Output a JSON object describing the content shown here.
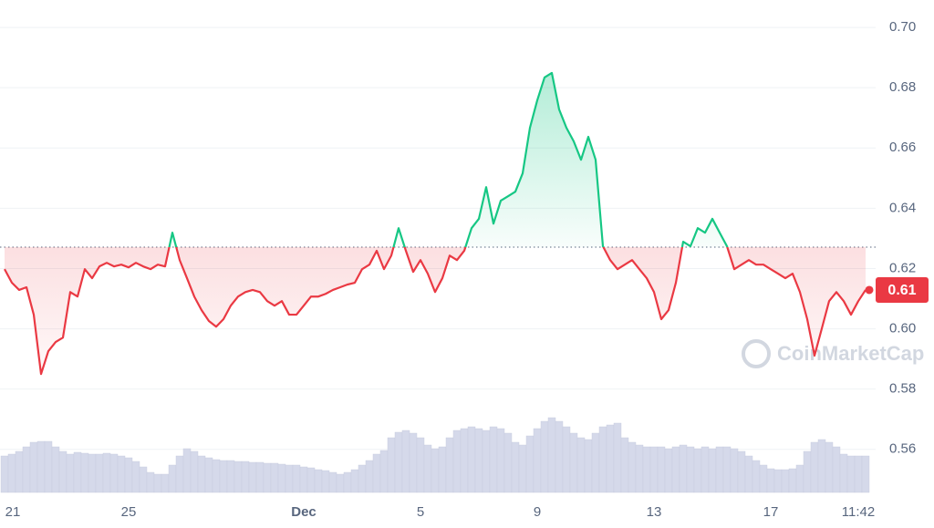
{
  "chart_data": {
    "type": "line",
    "watermark": "CoinMarketCap",
    "categories": [
      null,
      "21",
      null,
      null,
      null,
      null,
      null,
      null,
      null,
      null,
      null,
      null,
      null,
      null,
      null,
      null,
      null,
      "25",
      null,
      null,
      null,
      null,
      null,
      null,
      null,
      null,
      null,
      null,
      null,
      null,
      null,
      null,
      null,
      null,
      null,
      null,
      null,
      null,
      null,
      null,
      null,
      "Dec",
      null,
      null,
      null,
      null,
      null,
      null,
      null,
      null,
      null,
      null,
      null,
      null,
      null,
      null,
      null,
      "5",
      null,
      null,
      null,
      null,
      null,
      null,
      null,
      null,
      null,
      null,
      null,
      null,
      null,
      null,
      null,
      "9",
      null,
      null,
      null,
      null,
      null,
      null,
      null,
      null,
      null,
      null,
      null,
      null,
      null,
      null,
      null,
      "13",
      null,
      null,
      null,
      null,
      null,
      null,
      null,
      null,
      null,
      null,
      null,
      null,
      null,
      null,
      null,
      "17",
      null,
      null,
      null,
      null,
      null,
      null,
      null,
      null,
      null,
      null,
      null,
      "11:42",
      null
    ],
    "series": [
      {
        "color_up": "#16c784",
        "color_down": "#ea3943",
        "values": [
          0.6198,
          0.6153,
          0.6129,
          0.6138,
          0.6047,
          0.585,
          0.5926,
          0.5956,
          0.5971,
          0.6122,
          0.6107,
          0.6198,
          0.6168,
          0.6207,
          0.6219,
          0.6207,
          0.6213,
          0.6204,
          0.6219,
          0.6207,
          0.6198,
          0.6213,
          0.6207,
          0.6319,
          0.6228,
          0.6168,
          0.6107,
          0.6062,
          0.6026,
          0.6007,
          0.6032,
          0.6077,
          0.6107,
          0.6122,
          0.6129,
          0.6122,
          0.6092,
          0.6077,
          0.6092,
          0.6047,
          0.6047,
          0.6077,
          0.6107,
          0.6107,
          0.6116,
          0.6129,
          0.6138,
          0.6147,
          0.6153,
          0.6198,
          0.6213,
          0.6259,
          0.6198,
          0.6243,
          0.6334,
          0.6259,
          0.6189,
          0.6228,
          0.6183,
          0.6122,
          0.6168,
          0.6243,
          0.6228,
          0.6259,
          0.6334,
          0.6365,
          0.647,
          0.6349,
          0.6425,
          0.644,
          0.6455,
          0.6516,
          0.6667,
          0.6758,
          0.6834,
          0.6849,
          0.6728,
          0.6667,
          0.6622,
          0.6561,
          0.6637,
          0.6561,
          0.6274,
          0.6228,
          0.6198,
          0.6213,
          0.6228,
          0.6198,
          0.6168,
          0.6122,
          0.6032,
          0.6062,
          0.6153,
          0.6289,
          0.6274,
          0.6334,
          0.6319,
          0.6365,
          0.6319,
          0.6274,
          0.6198,
          0.6213,
          0.6228,
          0.6213,
          0.6213,
          0.6198,
          0.6183,
          0.6168,
          0.6183,
          0.6122,
          0.6032,
          0.5911,
          0.6001,
          0.6092,
          0.6122,
          0.6092,
          0.6047,
          0.6092,
          0.6129
        ],
        "value_labels": [
          null,
          null,
          null,
          null,
          null,
          null,
          null,
          null,
          null,
          null,
          null,
          null,
          null,
          null,
          null,
          null,
          null,
          null,
          null,
          null,
          null,
          null,
          null,
          null,
          null,
          null,
          null,
          null,
          null,
          null,
          null,
          null,
          null,
          null,
          null,
          null,
          null,
          null,
          null,
          null,
          null,
          null,
          null,
          null,
          null,
          null,
          null,
          null,
          null,
          null,
          null,
          null,
          null,
          null,
          null,
          null,
          null,
          null,
          null,
          null,
          null,
          null,
          null,
          null,
          null,
          null,
          null,
          null,
          null,
          null,
          null,
          null,
          null,
          null,
          null,
          null,
          null,
          null,
          null,
          null,
          null,
          null,
          null,
          null,
          null,
          null,
          null,
          null,
          null,
          null,
          null,
          null,
          null,
          null,
          null,
          null,
          null,
          null,
          null,
          null,
          null,
          null,
          null,
          null,
          null,
          null,
          null,
          null,
          null,
          null,
          null,
          null,
          null,
          null,
          null,
          null,
          null,
          null,
          "0.61"
        ]
      },
      {
        "type": "bar",
        "axis": "y2",
        "color": "#d5d9ea",
        "values": [
          40,
          42,
          45,
          50,
          55,
          56,
          56,
          50,
          45,
          42,
          44,
          43,
          42,
          42,
          43,
          42,
          40,
          38,
          34,
          28,
          22,
          20,
          20,
          30,
          40,
          48,
          45,
          40,
          38,
          36,
          35,
          35,
          34,
          34,
          33,
          33,
          32,
          32,
          31,
          30,
          30,
          28,
          27,
          25,
          24,
          22,
          20,
          22,
          25,
          30,
          35,
          42,
          46,
          60,
          66,
          68,
          65,
          60,
          52,
          48,
          50,
          60,
          68,
          70,
          72,
          70,
          68,
          72,
          70,
          65,
          55,
          52,
          62,
          70,
          78,
          82,
          78,
          72,
          65,
          60,
          58,
          65,
          72,
          74,
          76,
          60,
          55,
          52,
          50,
          50,
          50,
          48,
          50,
          52,
          50,
          48,
          50,
          48,
          50,
          50,
          48,
          45,
          40,
          35,
          30,
          26,
          25,
          25,
          26,
          30,
          45,
          55,
          58,
          55,
          50,
          42,
          40,
          40,
          40
        ]
      }
    ],
    "baseline": 0.6271,
    "ylim": [
      0.5442,
      0.7091
    ],
    "yticks": [
      0.56,
      0.58,
      {
        "value": 0.6,
        "label": "0.60"
      },
      0.62,
      0.64,
      0.66,
      0.68,
      {
        "value": 0.7,
        "label": "0.70"
      }
    ],
    "y2lim": [
      0,
      100
    ],
    "grid": true
  }
}
